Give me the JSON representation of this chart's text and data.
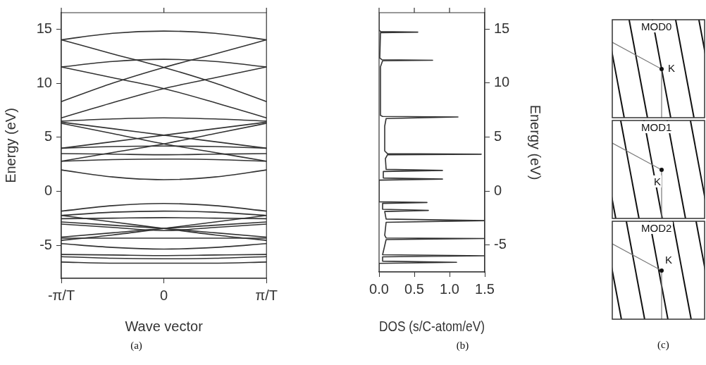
{
  "chart_data": [
    {
      "type": "line",
      "title": "(a)",
      "xlabel": "Wave vector",
      "ylabel": "Energy (eV)",
      "categories": [
        "-π/T",
        null,
        "0",
        null,
        "π/T"
      ],
      "ylim": [
        -8,
        16.5
      ],
      "yticks": [
        -5,
        0,
        5,
        10,
        15
      ],
      "grid": false,
      "legend": false,
      "marker": "none",
      "line_style": "solid",
      "series": [
        {
          "color": "#333333",
          "values": [
            14,
            14.6,
            14.8,
            14.6,
            14
          ]
        },
        {
          "color": "#333333",
          "values": [
            11.5,
            12.0,
            12.2,
            12.0,
            11.5
          ]
        },
        {
          "color": "#333333",
          "values": [
            6.5,
            6.7,
            6.8,
            6.7,
            6.5
          ]
        },
        {
          "color": "#333333",
          "values": [
            4.0,
            4.15,
            4.2,
            4.15,
            4.0
          ]
        },
        {
          "color": "#333333",
          "values": [
            3.5,
            3.45,
            3.4,
            3.45,
            3.5
          ]
        },
        {
          "color": "#333333",
          "values": [
            2.8,
            2.95,
            3.0,
            2.95,
            2.8
          ]
        },
        {
          "color": "#333333",
          "values": [
            2.0,
            1.35,
            1.1,
            1.35,
            2.0
          ]
        },
        {
          "color": "#333333",
          "values": [
            14,
            12.7,
            11.45,
            10.0,
            8.3
          ]
        },
        {
          "color": "#333333",
          "values": [
            8.3,
            10.0,
            11.45,
            12.7,
            14
          ]
        },
        {
          "color": "#333333",
          "values": [
            11.5,
            10.5,
            9.5,
            8.2,
            6.8
          ]
        },
        {
          "color": "#333333",
          "values": [
            6.8,
            8.2,
            9.5,
            10.5,
            11.5
          ]
        },
        {
          "color": "#333333",
          "values": [
            6.4,
            5.8,
            5.2,
            4.6,
            4.0
          ]
        },
        {
          "color": "#333333",
          "values": [
            4.0,
            4.6,
            5.2,
            5.8,
            6.4
          ]
        },
        {
          "color": "#333333",
          "values": [
            6.3,
            5.35,
            4.4,
            3.6,
            2.8
          ]
        },
        {
          "color": "#333333",
          "values": [
            2.8,
            3.6,
            4.4,
            5.35,
            6.3
          ]
        },
        {
          "color": "#333333",
          "values": [
            -1.8,
            -1.3,
            -1.1,
            -1.3,
            -1.8
          ]
        },
        {
          "color": "#333333",
          "values": [
            -2.2,
            -1.9,
            -1.8,
            -1.9,
            -2.2
          ]
        },
        {
          "color": "#333333",
          "values": [
            -2.5,
            -2.45,
            -2.4,
            -2.45,
            -2.5
          ]
        },
        {
          "color": "#333333",
          "values": [
            -3.0,
            -3.3,
            -3.6,
            -3.3,
            -3.0
          ]
        },
        {
          "color": "#333333",
          "values": [
            -4.3,
            -4.3,
            -4.3,
            -4.3,
            -4.3
          ]
        },
        {
          "color": "#333333",
          "values": [
            -4.8,
            -5.15,
            -5.3,
            -5.15,
            -4.8
          ]
        },
        {
          "color": "#333333",
          "values": [
            -5.8,
            -5.85,
            -5.9,
            -5.85,
            -5.8
          ]
        },
        {
          "color": "#333333",
          "values": [
            -6.0,
            -6.15,
            -6.2,
            -6.15,
            -6.0
          ]
        },
        {
          "color": "#333333",
          "values": [
            -6.5,
            -6.6,
            -6.6,
            -6.6,
            -6.5
          ]
        },
        {
          "color": "#333333",
          "values": [
            -2.2,
            -2.8,
            -3.4,
            -4.0,
            -4.5
          ]
        },
        {
          "color": "#333333",
          "values": [
            -4.5,
            -4.0,
            -3.4,
            -2.8,
            -2.2
          ]
        },
        {
          "color": "#333333",
          "values": [
            -2.8,
            -3.1,
            -3.4,
            -3.8,
            -4.2
          ]
        },
        {
          "color": "#333333",
          "values": [
            -4.2,
            -3.8,
            -3.4,
            -3.1,
            -2.8
          ]
        }
      ]
    },
    {
      "type": "line",
      "title": "(b)",
      "xlabel": "DOS (s/C-atom/eV)",
      "y2label": "Energy (eV)",
      "xlim": [
        0,
        1.5
      ],
      "xticks": [
        {
          "value": 0,
          "label": "0.0"
        },
        0.5,
        {
          "value": 1,
          "label": "1.0"
        },
        1.5
      ],
      "y2lim": [
        -7.5,
        16.5
      ],
      "y2ticks": [
        -5,
        0,
        5,
        10,
        15
      ],
      "grid": false,
      "legend": false,
      "marker": "none",
      "line_style": "solid",
      "series": [
        {
          "color": "#333333",
          "axis": "y2",
          "x": [
            0,
            0,
            0.02,
            0.55,
            0.02,
            0.01,
            0.04,
            0.76,
            0.05,
            0.02,
            0.02,
            0.05,
            1.12,
            0.1,
            0.08,
            0.08,
            0.12,
            1.45,
            0.12,
            0.09,
            0.1,
            0.9,
            0.06,
            0.06,
            0.9,
            0,
            0,
            0.68,
            0.05,
            0.05,
            0.7,
            0.08,
            0.1,
            1.5,
            0.1,
            0.08,
            0.1,
            1.5,
            0.1,
            0.05,
            1.5,
            0.05,
            0.05,
            1.1,
            0,
            0
          ],
          "values": [
            16.5,
            14.9,
            14.75,
            14.7,
            14.65,
            12.3,
            12.15,
            12.1,
            12.05,
            11.5,
            7.0,
            6.9,
            6.85,
            6.7,
            6.0,
            3.7,
            3.45,
            3.4,
            3.35,
            3.0,
            2.0,
            1.9,
            1.8,
            1.2,
            1.1,
            1.0,
            -1.0,
            -1.07,
            -1.15,
            -1.7,
            -1.8,
            -1.9,
            -2.6,
            -2.75,
            -2.9,
            -4.1,
            -4.35,
            -4.4,
            -4.5,
            -5.9,
            -6.0,
            -6.1,
            -6.5,
            -6.6,
            -6.7,
            -7.5
          ]
        }
      ]
    },
    {
      "type": "other",
      "title": "(c)",
      "annotations": [
        "MOD0",
        "K",
        "MOD1",
        "K",
        "MOD2",
        "K"
      ]
    }
  ]
}
